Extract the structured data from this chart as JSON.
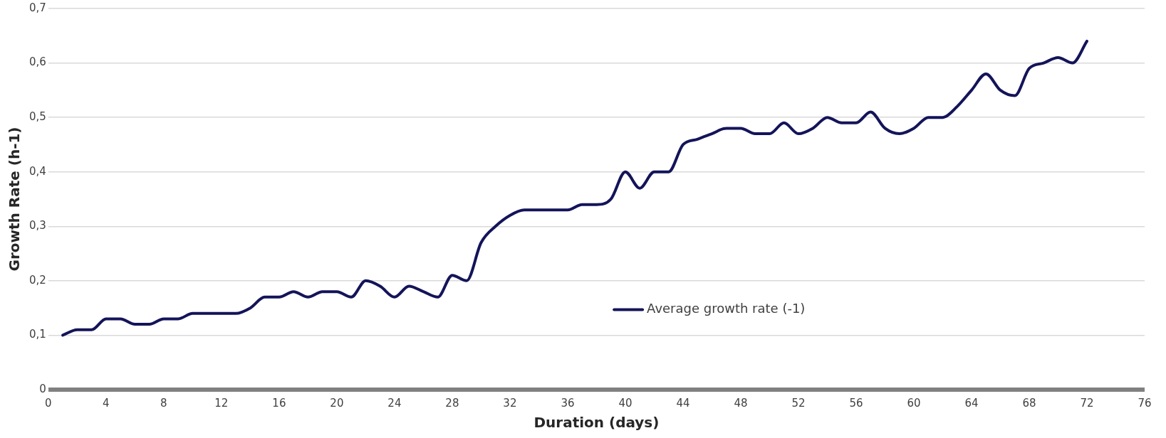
{
  "chart_data": {
    "type": "line",
    "xlabel": "Duration (days)",
    "ylabel": "Growth Rate (h-1)",
    "x": [
      1,
      2,
      3,
      4,
      5,
      6,
      7,
      8,
      9,
      10,
      11,
      12,
      13,
      14,
      15,
      16,
      17,
      18,
      19,
      20,
      21,
      22,
      23,
      24,
      25,
      26,
      27,
      28,
      29,
      30,
      31,
      32,
      33,
      34,
      35,
      36,
      37,
      38,
      39,
      40,
      41,
      42,
      43,
      44,
      45,
      46,
      47,
      48,
      49,
      50,
      51,
      52,
      53,
      54,
      55,
      56,
      57,
      58,
      59,
      60,
      61,
      62,
      63,
      64,
      65,
      66,
      67,
      68,
      69,
      70,
      71,
      72
    ],
    "series": [
      {
        "name": "Average growth rate (-1)",
        "color": "#14145a",
        "values": [
          0.1,
          0.11,
          0.11,
          0.13,
          0.13,
          0.12,
          0.12,
          0.13,
          0.13,
          0.14,
          0.14,
          0.14,
          0.14,
          0.15,
          0.17,
          0.17,
          0.18,
          0.17,
          0.18,
          0.18,
          0.17,
          0.2,
          0.19,
          0.17,
          0.19,
          0.18,
          0.17,
          0.21,
          0.2,
          0.27,
          0.3,
          0.32,
          0.33,
          0.33,
          0.33,
          0.33,
          0.34,
          0.34,
          0.35,
          0.4,
          0.37,
          0.4,
          0.4,
          0.45,
          0.46,
          0.47,
          0.48,
          0.48,
          0.47,
          0.47,
          0.49,
          0.47,
          0.48,
          0.5,
          0.49,
          0.49,
          0.51,
          0.48,
          0.47,
          0.48,
          0.5,
          0.5,
          0.52,
          0.55,
          0.58,
          0.55,
          0.54,
          0.59,
          0.6,
          0.61,
          0.6,
          0.64
        ]
      }
    ],
    "xlim": [
      0,
      76
    ],
    "xticks": [
      0,
      4,
      8,
      12,
      16,
      20,
      24,
      28,
      32,
      36,
      40,
      44,
      48,
      52,
      56,
      60,
      64,
      68,
      72,
      76
    ],
    "ylim": [
      0,
      0.7
    ],
    "yticks": [
      0,
      {
        "value": 0.1,
        "label": "0,1"
      },
      {
        "value": 0.2,
        "label": "0,2"
      },
      {
        "value": 0.3,
        "label": "0,3"
      },
      {
        "value": 0.4,
        "label": "0,4"
      },
      {
        "value": 0.5,
        "label": "0,5"
      },
      {
        "value": 0.6,
        "label": "0,6"
      },
      {
        "value": 0.7,
        "label": "0,7"
      }
    ],
    "grid": "y",
    "legend": "center",
    "marker": "none",
    "line_style": "solid"
  }
}
